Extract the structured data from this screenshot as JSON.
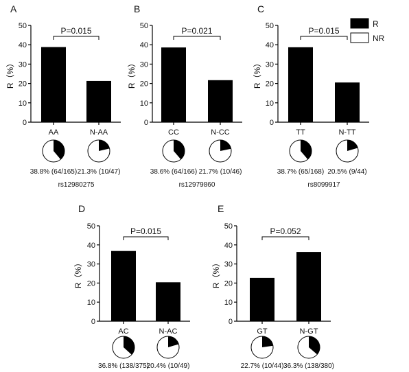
{
  "legend": {
    "items": [
      {
        "label": "R",
        "color": "#000000"
      },
      {
        "label": "NR",
        "color": "#ffffff"
      }
    ]
  },
  "chart_data": [
    {
      "type": "bar",
      "panel": "A",
      "ylabel": "R（%）",
      "ylim": [
        0,
        50
      ],
      "yticks": [
        "0",
        "10",
        "20",
        "30",
        "40",
        "50"
      ],
      "categories": [
        "AA",
        "N-AA"
      ],
      "values": [
        38.8,
        21.3
      ],
      "p_value": "P=0.015",
      "pies": [
        {
          "fraction": 0.388,
          "label": "38.8% (64/165)"
        },
        {
          "fraction": 0.213,
          "label": "21.3% (10/47)"
        }
      ],
      "snp": "rs12980275"
    },
    {
      "type": "bar",
      "panel": "B",
      "ylabel": "R（%）",
      "ylim": [
        0,
        50
      ],
      "yticks": [
        "0",
        "10",
        "20",
        "30",
        "40",
        "50"
      ],
      "categories": [
        "CC",
        "N-CC"
      ],
      "values": [
        38.6,
        21.7
      ],
      "p_value": "P=0.021",
      "pies": [
        {
          "fraction": 0.386,
          "label": "38.6% (64/166)"
        },
        {
          "fraction": 0.217,
          "label": "21.7% (10/46)"
        }
      ],
      "snp": "rs12979860"
    },
    {
      "type": "bar",
      "panel": "C",
      "ylabel": "R（%）",
      "ylim": [
        0,
        50
      ],
      "yticks": [
        "0",
        "10",
        "20",
        "30",
        "40",
        "50"
      ],
      "categories": [
        "TT",
        "N-TT"
      ],
      "values": [
        38.7,
        20.5
      ],
      "p_value": "P=0.015",
      "pies": [
        {
          "fraction": 0.387,
          "label": "38.7% (65/168)"
        },
        {
          "fraction": 0.205,
          "label": "20.5% (9/44)"
        }
      ],
      "snp": "rs8099917"
    },
    {
      "type": "bar",
      "panel": "D",
      "ylabel": "R（%）",
      "ylim": [
        0,
        50
      ],
      "yticks": [
        "0",
        "10",
        "20",
        "30",
        "40",
        "50"
      ],
      "categories": [
        "AC",
        "N-AC"
      ],
      "values": [
        36.8,
        20.4
      ],
      "p_value": "P=0.015",
      "pies": [
        {
          "fraction": 0.368,
          "label": "36.8% (138/375)"
        },
        {
          "fraction": 0.204,
          "label": "20.4% (10/49)"
        }
      ],
      "snp": ""
    },
    {
      "type": "bar",
      "panel": "E",
      "ylabel": "R（%）",
      "ylim": [
        0,
        50
      ],
      "yticks": [
        "0",
        "10",
        "20",
        "30",
        "40",
        "50"
      ],
      "categories": [
        "GT",
        "N-GT"
      ],
      "values": [
        22.7,
        36.3
      ],
      "p_value": "P=0.052",
      "pies": [
        {
          "fraction": 0.227,
          "label": "22.7% (10/44)"
        },
        {
          "fraction": 0.363,
          "label": "36.3% (138/380)"
        }
      ],
      "snp": ""
    }
  ]
}
